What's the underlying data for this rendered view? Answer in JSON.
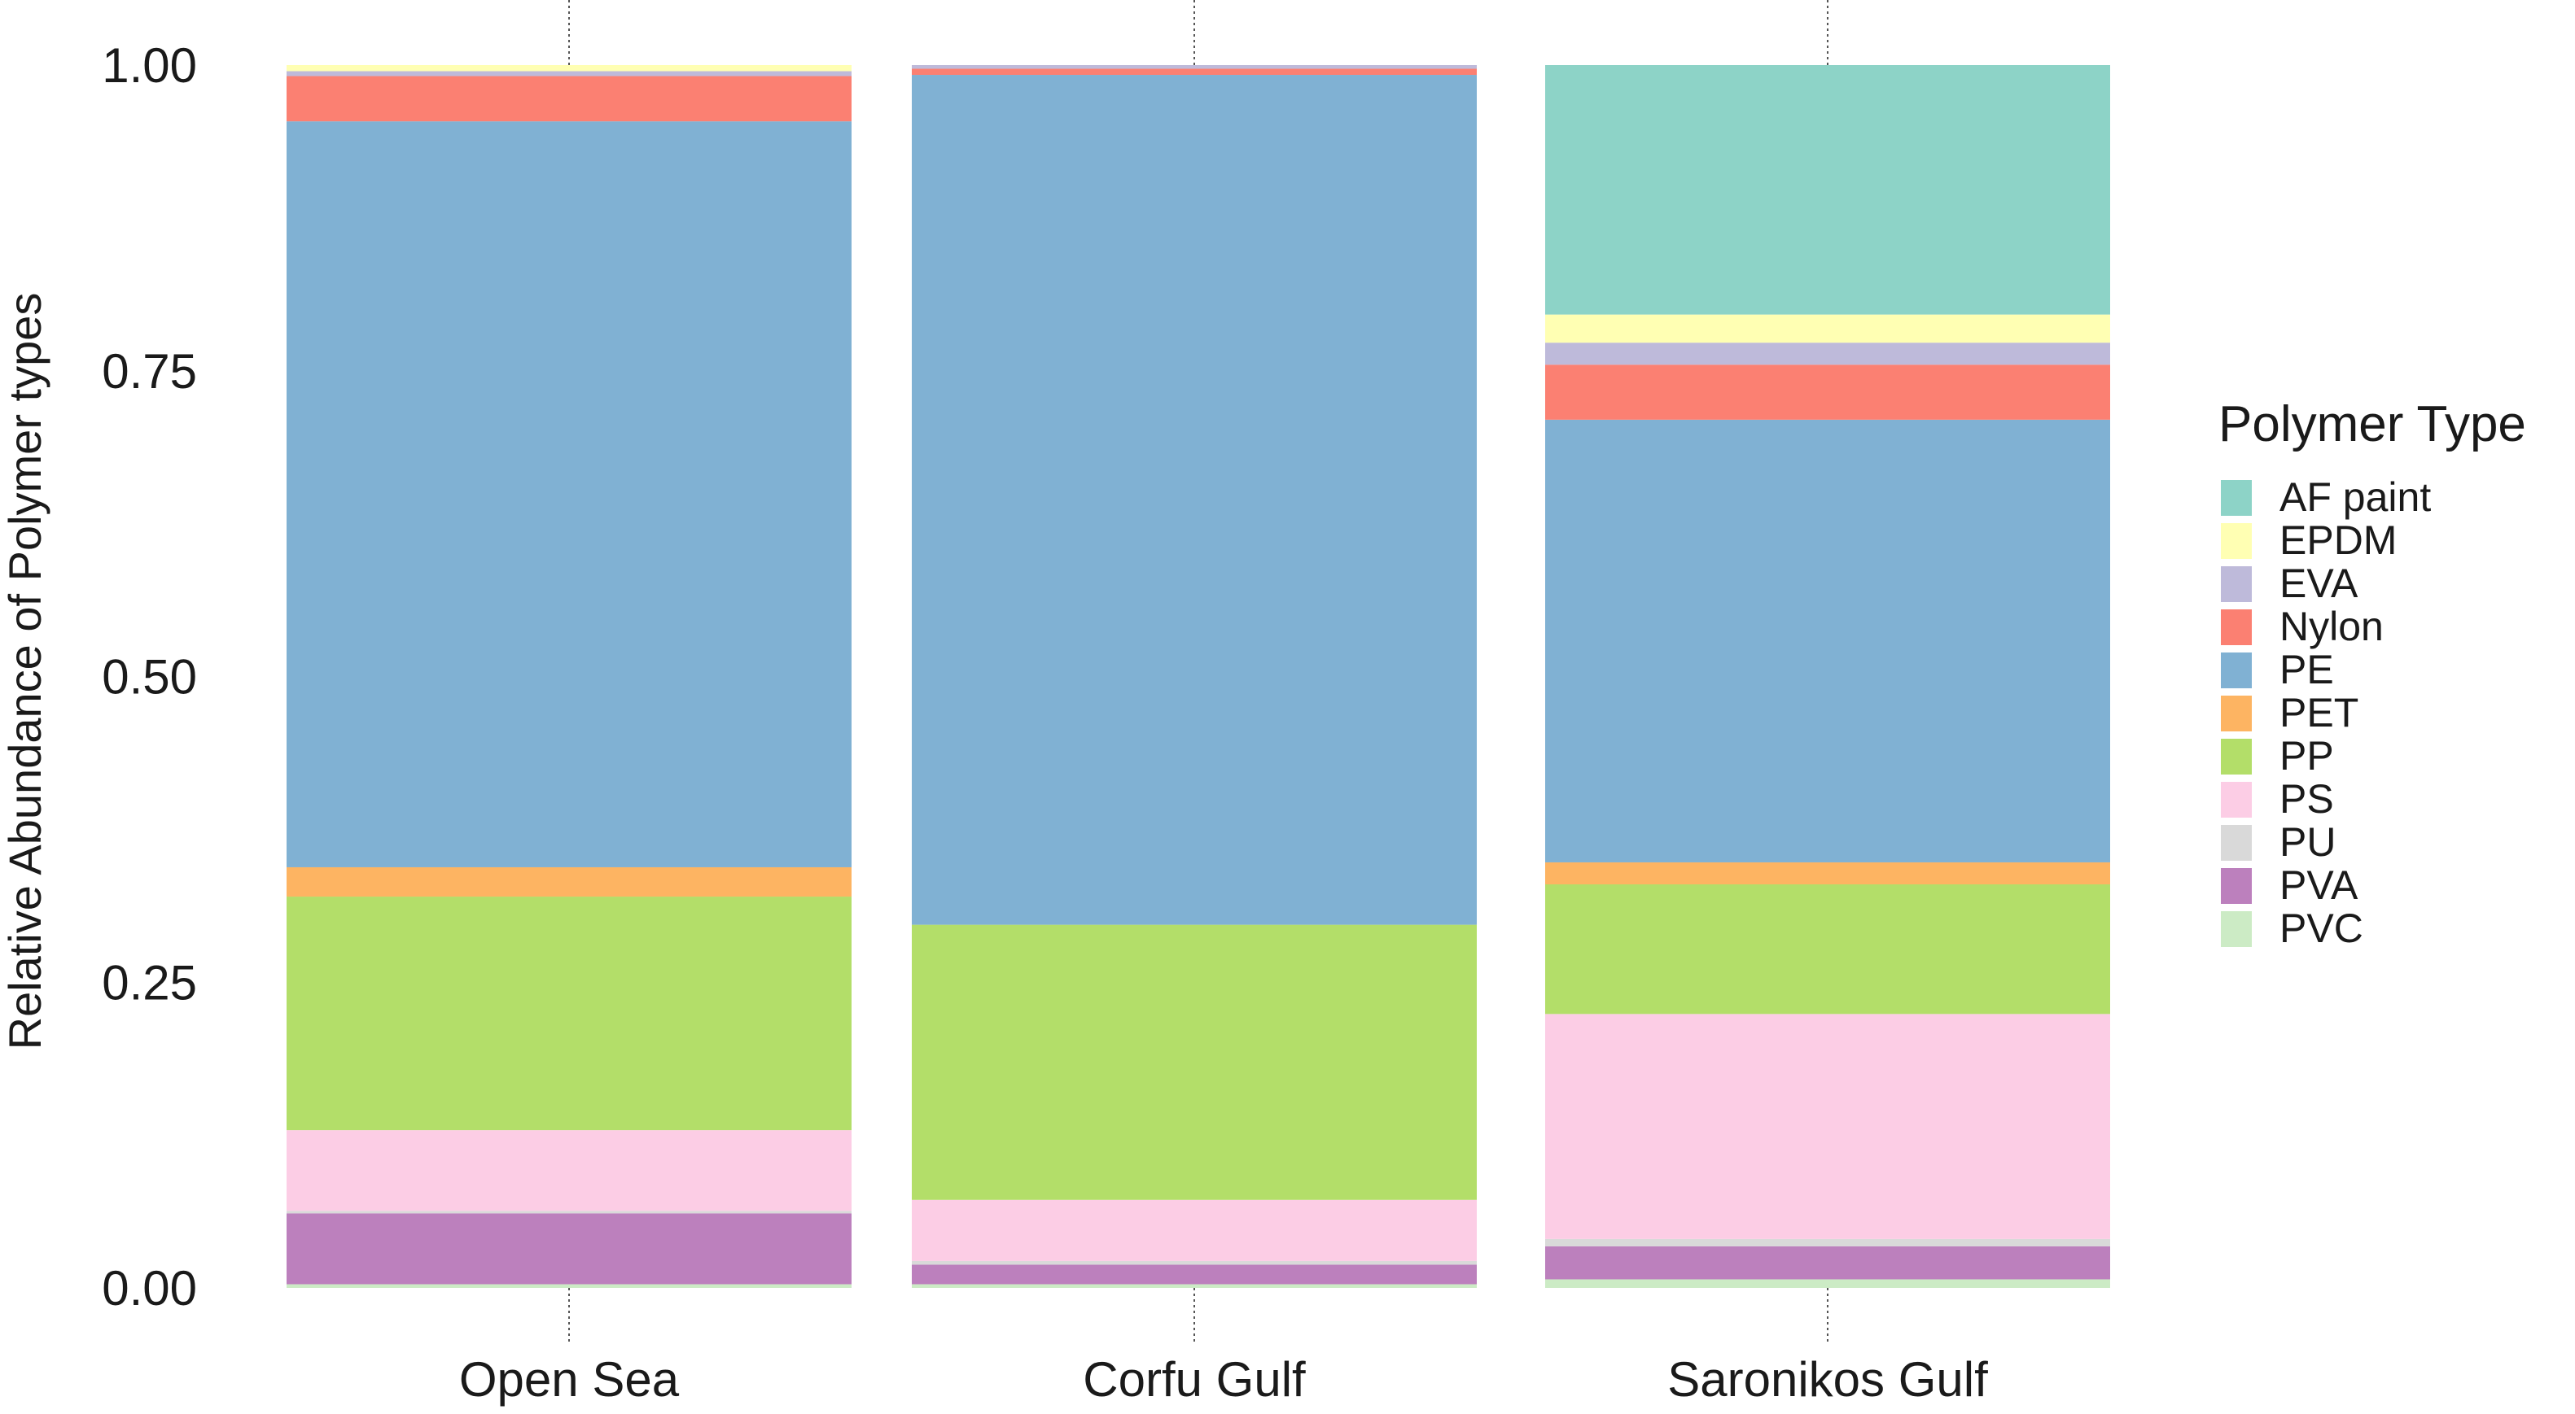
{
  "chart_data": {
    "type": "bar",
    "stacked": true,
    "title": "",
    "xlabel": "",
    "ylabel": "Relative Abundance of Polymer types",
    "ylim": [
      0,
      1
    ],
    "y_ticks": [
      "0.00",
      "0.25",
      "0.50",
      "0.75",
      "1.00"
    ],
    "y_tick_values": [
      0,
      0.25,
      0.5,
      0.75,
      1.0
    ],
    "grid": false,
    "legend_placement": "right",
    "legend_title": "Polymer Type",
    "categories": [
      "Open Sea",
      "Corfu Gulf",
      "Saronikos Gulf"
    ],
    "series": [
      {
        "name": "AF paint",
        "color": "#8DD3C7",
        "values": [
          0.0,
          0.0,
          0.204
        ]
      },
      {
        "name": "EPDM",
        "color": "#FFFFB3",
        "values": [
          0.005,
          0.0,
          0.023
        ]
      },
      {
        "name": "EVA",
        "color": "#BEBADA",
        "values": [
          0.004,
          0.003,
          0.018
        ]
      },
      {
        "name": "Nylon",
        "color": "#FB8072",
        "values": [
          0.037,
          0.005,
          0.045
        ]
      },
      {
        "name": "PE",
        "color": "#80B1D3",
        "values": [
          0.61,
          0.695,
          0.362
        ]
      },
      {
        "name": "PET",
        "color": "#FDB462",
        "values": [
          0.024,
          0.0,
          0.018
        ]
      },
      {
        "name": "PP",
        "color": "#B3DE69",
        "values": [
          0.191,
          0.225,
          0.106
        ]
      },
      {
        "name": "PS",
        "color": "#FCCDE5",
        "values": [
          0.066,
          0.05,
          0.184
        ]
      },
      {
        "name": "PU",
        "color": "#D9D9D9",
        "values": [
          0.002,
          0.003,
          0.006
        ]
      },
      {
        "name": "PVA",
        "color": "#BC80BD",
        "values": [
          0.058,
          0.016,
          0.027
        ]
      },
      {
        "name": "PVC",
        "color": "#CCEBC5",
        "values": [
          0.003,
          0.003,
          0.007
        ]
      }
    ]
  }
}
